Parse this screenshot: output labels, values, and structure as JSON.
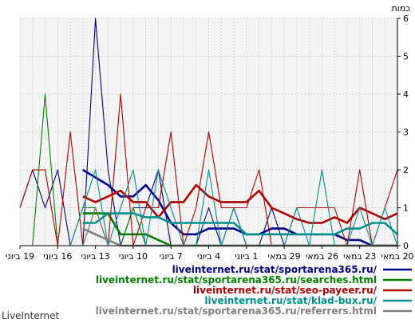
{
  "chart_data": {
    "type": "line",
    "ylabel": "כמות",
    "ylim": [
      0,
      6
    ],
    "yticks": [
      0,
      1,
      2,
      3,
      4,
      5,
      6
    ],
    "grid": true,
    "legend_placement": "bottom",
    "xticks": [
      {
        "label": "20 במאי",
        "index": 0
      },
      {
        "label": "23 במאי",
        "index": 3
      },
      {
        "label": "26 במאי",
        "index": 6
      },
      {
        "label": "29 במאי",
        "index": 9
      },
      {
        "label": "1 ביוני",
        "index": 12
      },
      {
        "label": "4 ביוני",
        "index": 15
      },
      {
        "label": "7 ביוני",
        "index": 18
      },
      {
        "label": "10 ביוני",
        "index": 21
      },
      {
        "label": "13 ביוני",
        "index": 24
      },
      {
        "label": "16 ביוני",
        "index": 27
      },
      {
        "label": "19 ביוני",
        "index": 30
      }
    ],
    "x_count": 31,
    "series": [
      {
        "name": "liveinternet.ru/stat/sportarena365.ru/",
        "color": "#00008b",
        "kind": "daily",
        "values": [
          1,
          2,
          1,
          2,
          0,
          0,
          6,
          2,
          0,
          1,
          1,
          2,
          0,
          0,
          0,
          1,
          0,
          1,
          0,
          0,
          1,
          0,
          0,
          0,
          0,
          0,
          0,
          0,
          0,
          0,
          0
        ]
      },
      {
        "name": "liveinternet.ru/stat/sportarena365.ru/",
        "color": "#00008b",
        "kind": "average",
        "values": [
          null,
          null,
          null,
          null,
          null,
          2.0,
          1.8,
          1.6,
          1.3,
          1.3,
          1.6,
          1.2,
          0.6,
          0.3,
          0.3,
          0.45,
          0.45,
          0.45,
          0.3,
          0.3,
          0.45,
          0.45,
          0.3,
          0.3,
          0.3,
          0.3,
          0.15,
          0.15,
          0,
          0,
          0
        ]
      },
      {
        "name": "liveinternet.ru/stat/sportarena365.ru/searches.html",
        "color": "#008000",
        "kind": "daily",
        "values": [
          0,
          0,
          4,
          0,
          0,
          1,
          1,
          0,
          0,
          1,
          0,
          0,
          0,
          0,
          0,
          0,
          0,
          0,
          0,
          0,
          0,
          0,
          0,
          0,
          0,
          0,
          0,
          0,
          0,
          0,
          0
        ]
      },
      {
        "name": "liveinternet.ru/stat/sportarena365.ru/searches.html",
        "color": "#008000",
        "kind": "average",
        "values": [
          null,
          null,
          null,
          null,
          null,
          0.85,
          0.85,
          0.85,
          0.3,
          0.3,
          0.3,
          0.15,
          0,
          0,
          0,
          0,
          0,
          0,
          0,
          0,
          0,
          0,
          0,
          0,
          0,
          0,
          0,
          0,
          0,
          0,
          0
        ]
      },
      {
        "name": "liveinternet.ru/stat/seo-payeer.ru/",
        "color": "#b00000",
        "kind": "daily",
        "values": [
          1,
          2,
          2,
          0,
          3,
          0,
          1,
          0,
          4,
          0,
          1,
          1,
          3,
          0,
          1,
          3,
          1,
          1,
          1,
          2,
          0,
          0,
          1,
          1,
          1,
          1,
          0,
          2,
          0,
          1,
          2
        ]
      },
      {
        "name": "liveinternet.ru/stat/seo-payeer.ru/",
        "color": "#b00000",
        "kind": "average",
        "values": [
          null,
          null,
          null,
          null,
          null,
          1.3,
          1.15,
          1.3,
          1.45,
          1.15,
          1.15,
          0.75,
          1.15,
          1.15,
          1.6,
          1.3,
          1.15,
          1.15,
          1.15,
          1.45,
          1.0,
          0.85,
          0.7,
          0.6,
          0.6,
          0.75,
          0.6,
          1.0,
          0.85,
          0.7,
          0.85
        ]
      },
      {
        "name": "liveinternet.ru/stat/klad-bux.ru/",
        "color": "#009090",
        "kind": "daily",
        "values": [
          0,
          0,
          0,
          0,
          0,
          1,
          2,
          0,
          1,
          2,
          0,
          2,
          1,
          0,
          0,
          2,
          0,
          1,
          0,
          0,
          0,
          0,
          1,
          0,
          2,
          0,
          0,
          1,
          0,
          1,
          0
        ]
      },
      {
        "name": "liveinternet.ru/stat/klad-bux.ru/",
        "color": "#009090",
        "kind": "average",
        "values": [
          null,
          null,
          null,
          null,
          null,
          0.6,
          0.6,
          0.85,
          0.85,
          0.85,
          0.75,
          0.75,
          0.6,
          0.6,
          0.6,
          0.6,
          0.6,
          0.6,
          0.3,
          0.3,
          0.3,
          0.3,
          0.3,
          0.3,
          0.3,
          0.3,
          0.45,
          0.45,
          0.6,
          0.6,
          0.3
        ]
      },
      {
        "name": "liveinternet.ru/stat/sportarena365.ru/referrers.html",
        "color": "#808080",
        "kind": "daily",
        "values": [
          0,
          0,
          0,
          0,
          0,
          0,
          1,
          0,
          0,
          0,
          0,
          0,
          0,
          0,
          0,
          0,
          0,
          0,
          0,
          0,
          0,
          0,
          0,
          0,
          0,
          0,
          0,
          0,
          0,
          0,
          0
        ]
      },
      {
        "name": "liveinternet.ru/stat/sportarena365.ru/referrers.html",
        "color": "#808080",
        "kind": "average",
        "values": [
          null,
          null,
          null,
          null,
          null,
          0.45,
          0.3,
          0.15,
          0,
          0,
          0,
          0,
          0,
          0,
          0,
          0,
          0,
          0,
          0,
          0,
          0,
          0,
          0,
          0,
          0,
          0,
          0,
          0,
          0,
          0,
          0
        ]
      }
    ],
    "legend": [
      {
        "label": "liveinternet.ru/stat/sportarena365.ru/",
        "color": "#00008b"
      },
      {
        "label": "liveinternet.ru/stat/sportarena365.ru/searches.html",
        "color": "#008000"
      },
      {
        "label": "liveinternet.ru/stat/seo-payeer.ru/",
        "color": "#b00000"
      },
      {
        "label": "liveinternet.ru/stat/klad-bux.ru/",
        "color": "#009090"
      },
      {
        "label": "liveinternet.ru/stat/sportarena365.ru/referrers.html",
        "color": "#808080"
      }
    ]
  },
  "brand": "LiveInternet"
}
